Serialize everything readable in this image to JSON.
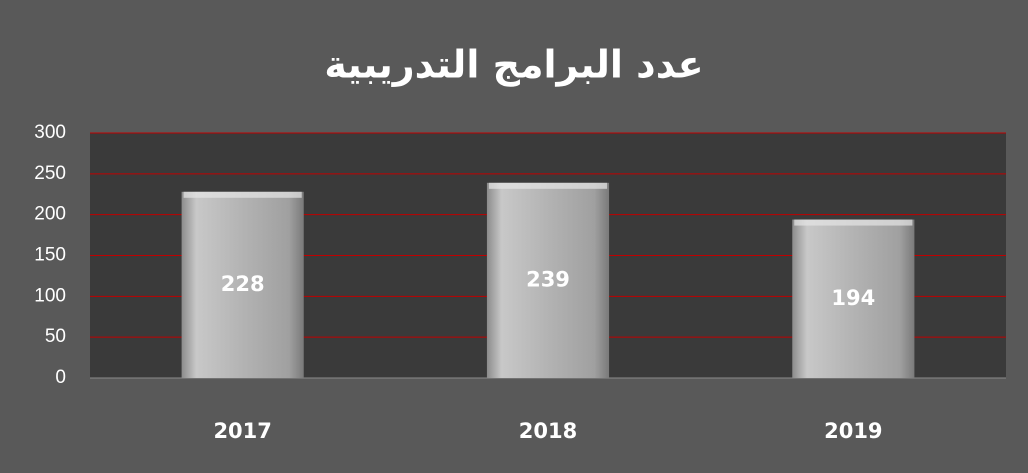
{
  "chart_data": {
    "type": "bar",
    "title": "عدد البرامج التدريبية",
    "categories": [
      "2017",
      "2018",
      "2019"
    ],
    "values": [
      228,
      239,
      194
    ],
    "color": "#bfbfbf",
    "ylim": [
      0,
      300
    ],
    "yticks": [
      0,
      50,
      100,
      150,
      200,
      250,
      300
    ],
    "grid": true,
    "grid_color": "#c00000"
  }
}
